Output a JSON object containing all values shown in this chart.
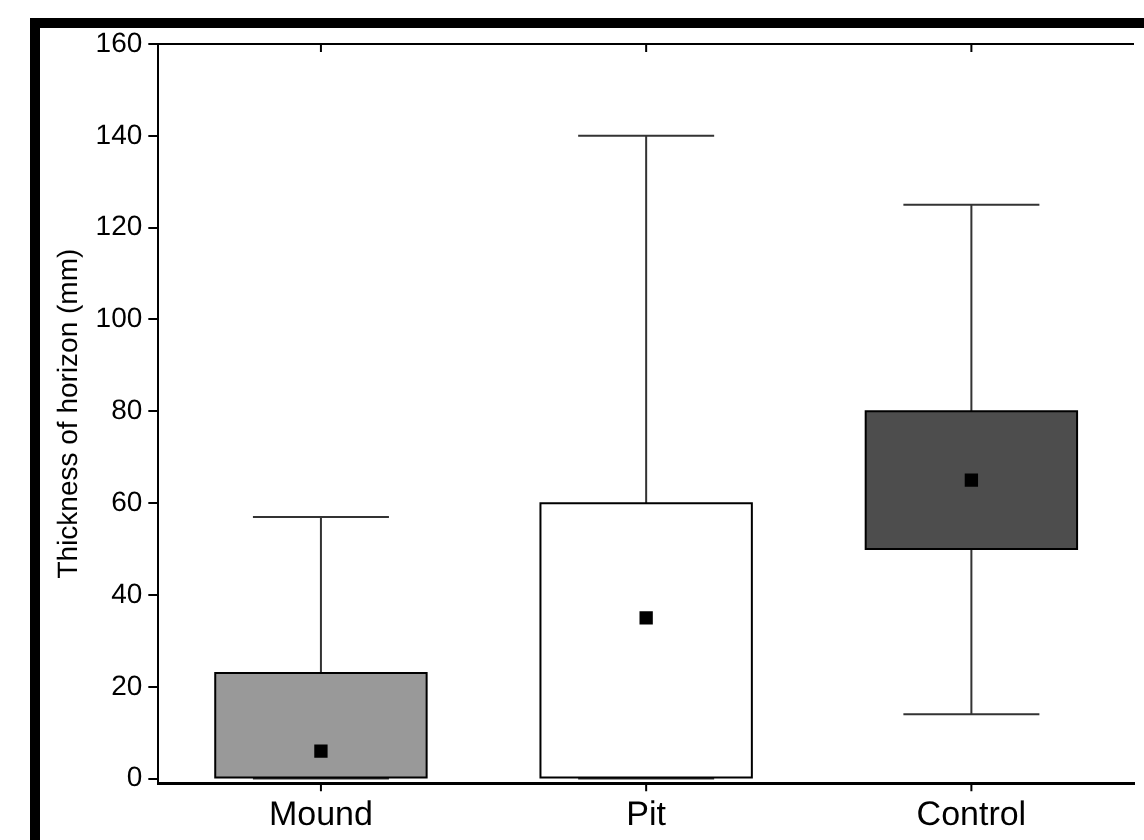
{
  "chart_data": {
    "type": "box",
    "ylabel": "Thickness of horizon (mm)",
    "categories": [
      "Mound",
      "Pit",
      "Control"
    ],
    "boxes": [
      {
        "low": 0,
        "q1": 0,
        "median": 6,
        "q3": 23,
        "high": 57
      },
      {
        "low": 0,
        "q1": 0,
        "median": 35,
        "q3": 60,
        "high": 140
      },
      {
        "low": 14,
        "q1": 50,
        "median": 65,
        "q3": 80,
        "high": 125
      }
    ],
    "colors": [
      "#999999",
      "#ffffff",
      "#4d4d4d"
    ],
    "ylim": [
      -1,
      160
    ],
    "yticks": [
      0,
      20,
      40,
      60,
      80,
      100,
      120,
      140,
      160
    ],
    "marker": "square",
    "grid": false,
    "legend": false
  }
}
